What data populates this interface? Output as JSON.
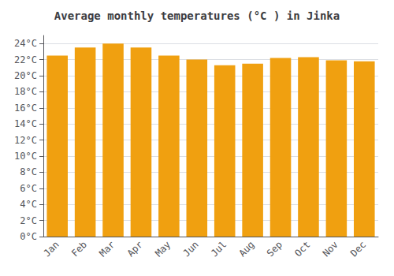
{
  "chart_data": {
    "type": "bar",
    "title": "Average monthly temperatures (°C ) in Jinka",
    "categories": [
      "Jan",
      "Feb",
      "Mar",
      "Apr",
      "May",
      "Jun",
      "Jul",
      "Aug",
      "Sep",
      "Oct",
      "Nov",
      "Dec"
    ],
    "values": [
      22.5,
      23.5,
      24.0,
      23.5,
      22.5,
      22.0,
      21.3,
      21.5,
      22.2,
      22.3,
      21.9,
      21.8
    ],
    "color": "#F0A010",
    "ylim": [
      0,
      25
    ],
    "yticks": [
      {
        "value": 0,
        "label": "0°C"
      },
      {
        "value": 2,
        "label": "2°C"
      },
      {
        "value": 4,
        "label": "4°C"
      },
      {
        "value": 6,
        "label": "6°C"
      },
      {
        "value": 8,
        "label": "8°C"
      },
      {
        "value": 10,
        "label": "10°C"
      },
      {
        "value": 12,
        "label": "12°C"
      },
      {
        "value": 14,
        "label": "14°C"
      },
      {
        "value": 16,
        "label": "16°C"
      },
      {
        "value": 18,
        "label": "18°C"
      },
      {
        "value": 20,
        "label": "20°C"
      },
      {
        "value": 22,
        "label": "22°C"
      },
      {
        "value": 24,
        "label": "24°C"
      }
    ],
    "grid": true
  }
}
